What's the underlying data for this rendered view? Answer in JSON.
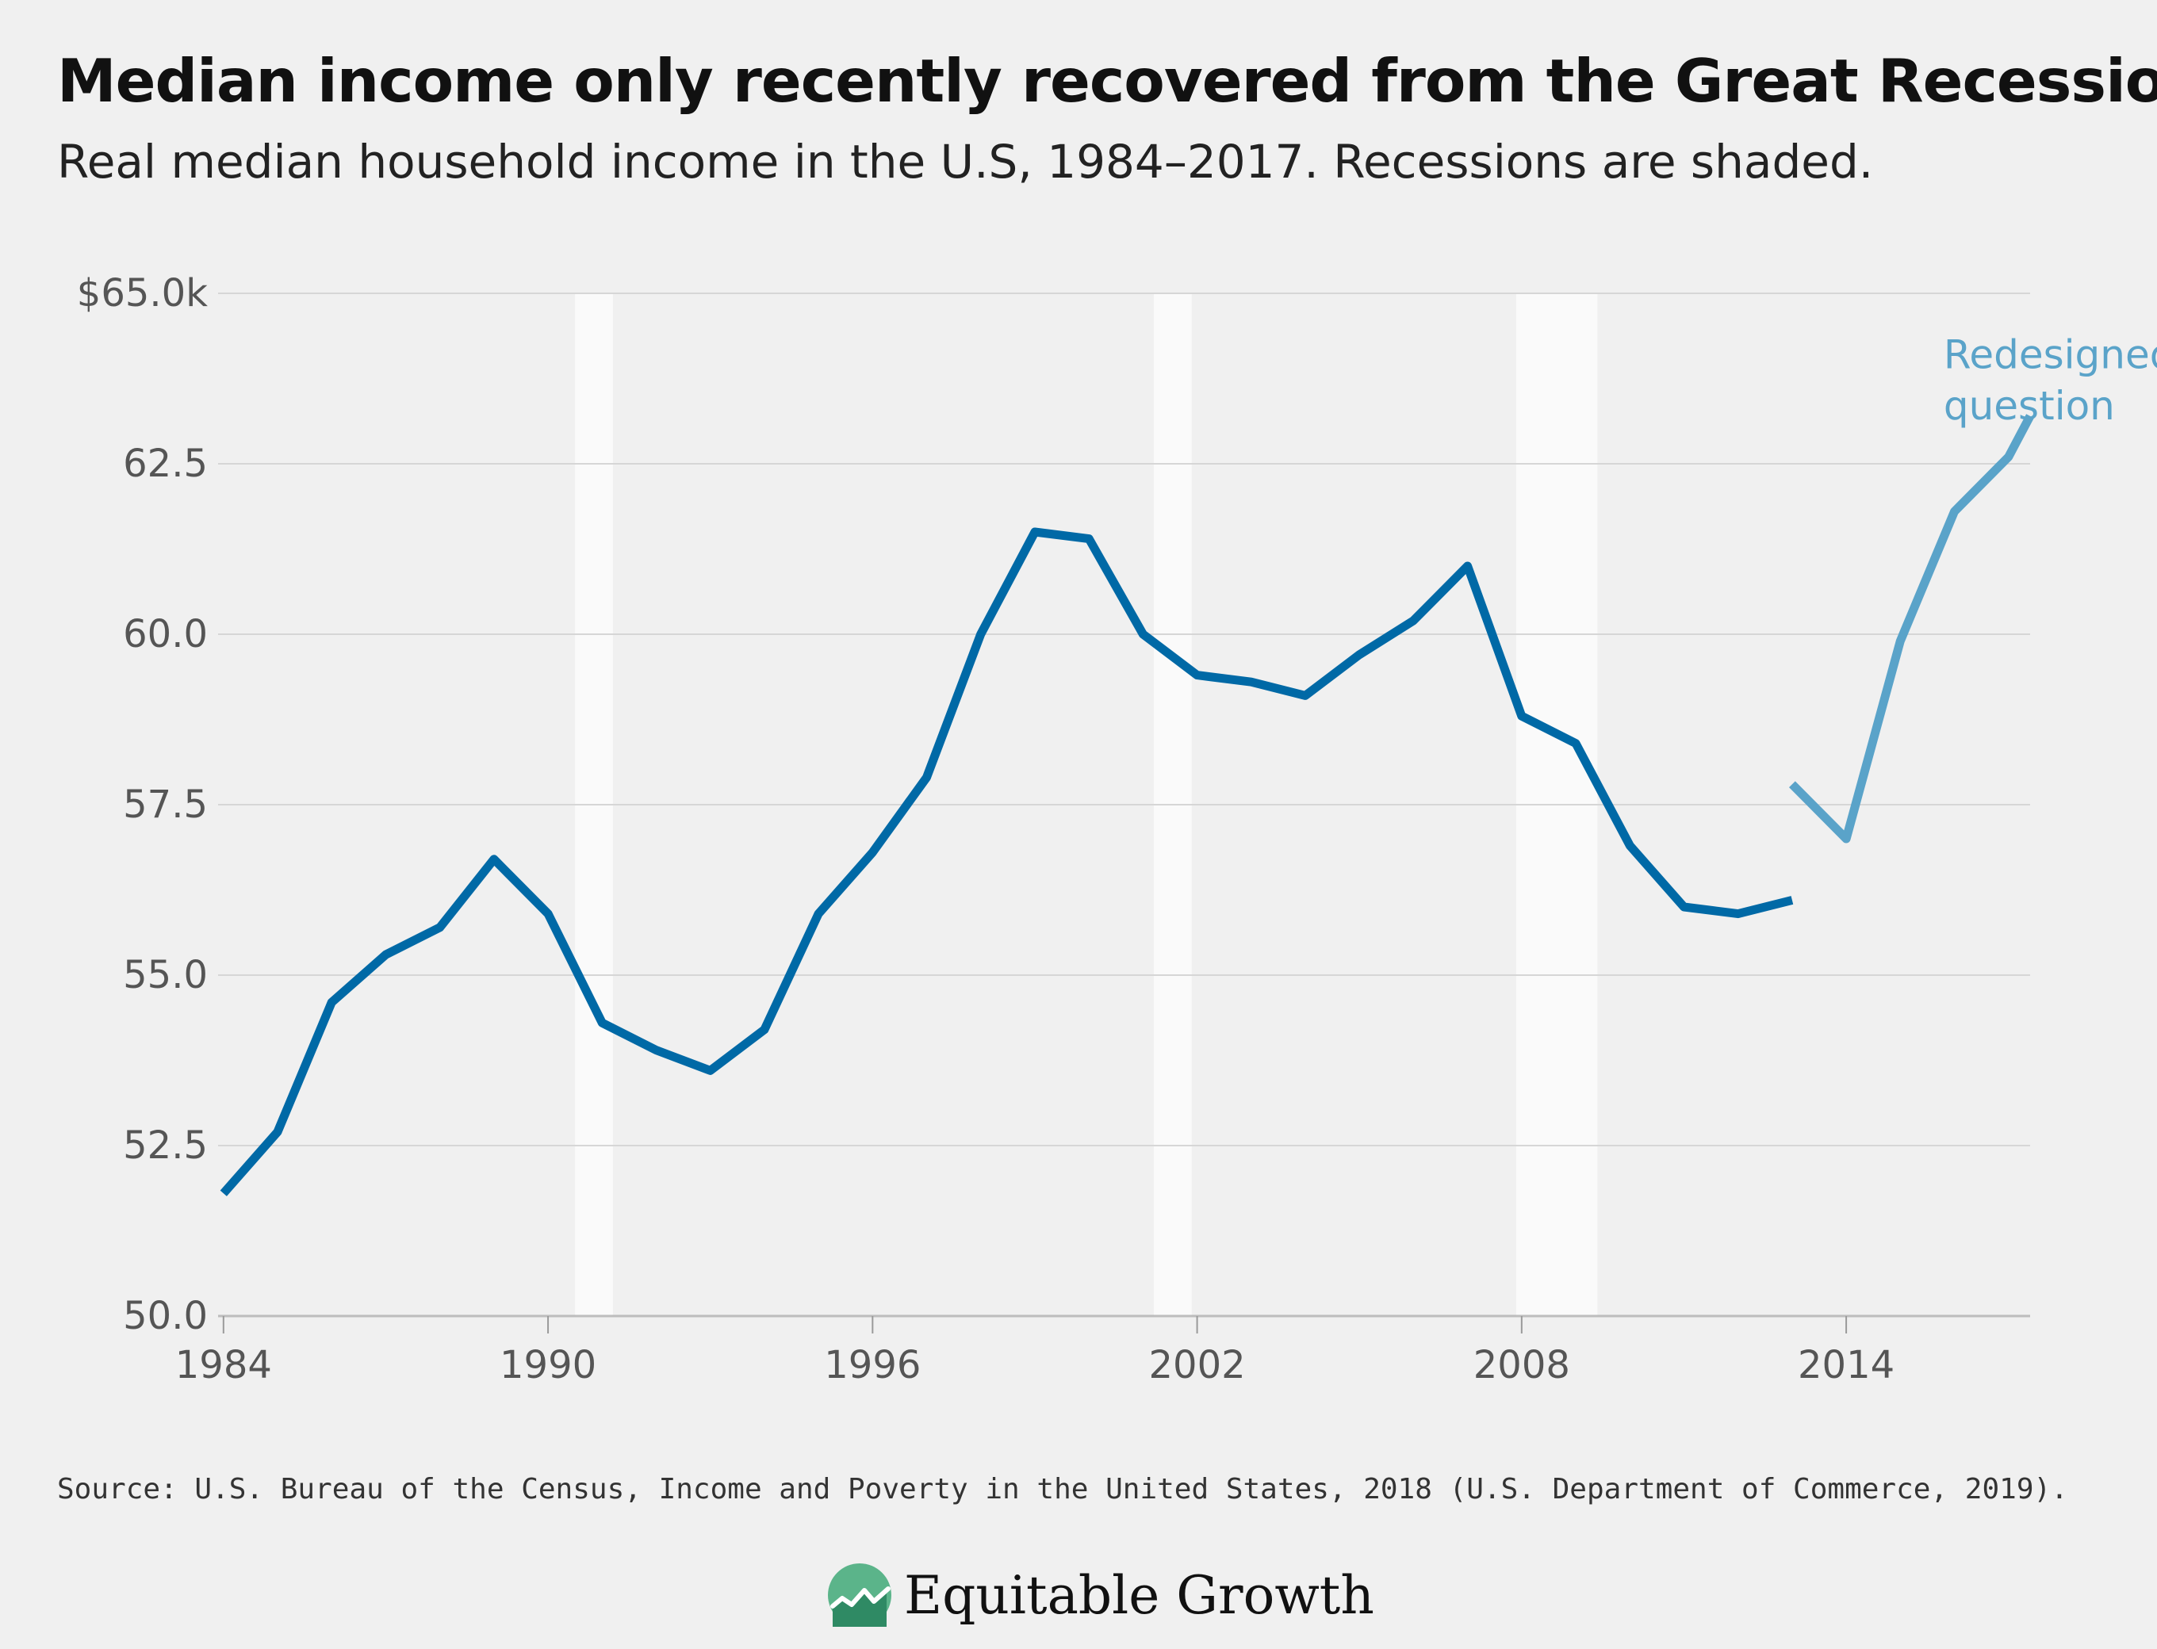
{
  "header": {
    "title": "Median income only recently recovered from the Great Recession",
    "subtitle": "Real median household income in the U.S, 1984–2017. Recessions are shaded."
  },
  "footer": {
    "source": "Source: U.S. Bureau of the Census, Income and Poverty in the United States, 2018 (U.S. Department of Commerce, 2019).",
    "logo_text": "Equitable Growth",
    "logo_icon": "trend-line-circle-icon"
  },
  "colors": {
    "background": "#f0f0f0",
    "grid": "#d6d6d6",
    "recession_band": "#fafafa",
    "series_main": "#0069a6",
    "series_redesigned": "#5aa3c9",
    "logo_green": "#5bb48a"
  },
  "chart_data": {
    "type": "line",
    "title": "Median income only recently recovered from the Great Recession",
    "subtitle": "Real median household income in the U.S, 1984–2017. Recessions are shaded.",
    "xlabel": "",
    "ylabel": "",
    "xlim": [
      1983.9,
      2017.4
    ],
    "ylim": [
      50.0,
      65.0
    ],
    "y_unit": "thousands of dollars",
    "yticks": [
      50.0,
      52.5,
      55.0,
      57.5,
      60.0,
      62.5,
      65.0
    ],
    "ytick_labels": [
      "50.0",
      "52.5",
      "55.0",
      "57.5",
      "60.0",
      "62.5",
      "$65.0k"
    ],
    "xticks": [
      1984,
      1990,
      1996,
      2002,
      2008,
      2014
    ],
    "xtick_labels": [
      "1984",
      "1990",
      "1996",
      "2002",
      "2008",
      "2014"
    ],
    "grid": true,
    "recessions": [
      {
        "start": 1990.5,
        "end": 1991.2
      },
      {
        "start": 2001.2,
        "end": 2001.9
      },
      {
        "start": 2007.9,
        "end": 2009.4
      }
    ],
    "series": [
      {
        "color": "#0069a6",
        "x": [
          1984,
          1985,
          1986,
          1987,
          1988,
          1989,
          1990,
          1991,
          1992,
          1993,
          1994,
          1995,
          1996,
          1997,
          1998,
          1999,
          2000,
          2001,
          2002,
          2003,
          2004,
          2005,
          2006,
          2007,
          2008,
          2009,
          2010,
          2011,
          2012,
          2013
        ],
        "values": [
          51.8,
          52.7,
          54.6,
          55.3,
          55.7,
          56.7,
          55.9,
          54.3,
          53.9,
          53.6,
          54.2,
          55.9,
          56.8,
          57.9,
          60.0,
          61.5,
          61.4,
          60.0,
          59.4,
          59.3,
          59.1,
          59.7,
          60.2,
          61.0,
          58.8,
          58.4,
          56.9,
          56.0,
          55.9,
          56.1
        ]
      },
      {
        "name": "Redesigned income question",
        "color": "#5aa3c9",
        "x": [
          2013,
          2014,
          2015,
          2016,
          2017
        ],
        "values": [
          57.8,
          57.0,
          59.9,
          61.8,
          62.6
        ]
      }
    ],
    "series_end_value": 63.2,
    "annotations": [
      {
        "text": "Redesigned income",
        "anchor_x": 2015.8,
        "anchor_y": 63.9
      },
      {
        "text": "question",
        "anchor_x": 2015.8,
        "anchor_y": 63.15
      }
    ]
  }
}
